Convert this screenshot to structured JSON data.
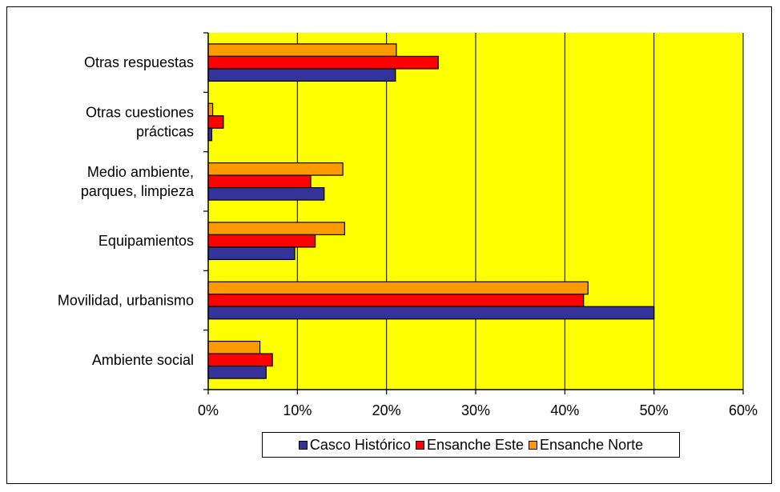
{
  "chart_data": {
    "type": "bar",
    "orientation": "horizontal",
    "categories": [
      "Otras respuestas",
      "Otras cuestiones prácticas",
      "Medio ambiente, parques, limpieza",
      "Equipamientos",
      "Movilidad, urbanismo",
      "Ambiente social"
    ],
    "category_label_lines": [
      [
        "Otras respuestas"
      ],
      [
        "Otras cuestiones",
        "prácticas"
      ],
      [
        "Medio ambiente,",
        "parques, limpieza"
      ],
      [
        "Equipamientos"
      ],
      [
        "Movilidad, urbanismo"
      ],
      [
        "Ambiente social"
      ]
    ],
    "series": [
      {
        "name": "Casco Histórico",
        "color": "#333399",
        "values": [
          21.0,
          0.4,
          13.0,
          9.7,
          50.0,
          6.5
        ]
      },
      {
        "name": "Ensanche Este",
        "color": "#ff0000",
        "values": [
          25.8,
          1.7,
          11.5,
          12.0,
          42.1,
          7.2
        ]
      },
      {
        "name": "Ensanche Norte",
        "color": "#ff9900",
        "values": [
          21.1,
          0.5,
          15.1,
          15.3,
          42.6,
          5.8
        ]
      }
    ],
    "xlim": [
      0,
      60
    ],
    "x_ticks": [
      "0%",
      "10%",
      "20%",
      "30%",
      "40%",
      "50%",
      "60%"
    ],
    "plot_background": "#ffff00",
    "gridlines": "vertical",
    "legend_position": "bottom"
  },
  "legend": {
    "items": [
      {
        "label": "Casco Histórico",
        "color": "#333399"
      },
      {
        "label": "Ensanche Este",
        "color": "#ff0000"
      },
      {
        "label": "Ensanche Norte",
        "color": "#ff9900"
      }
    ]
  }
}
